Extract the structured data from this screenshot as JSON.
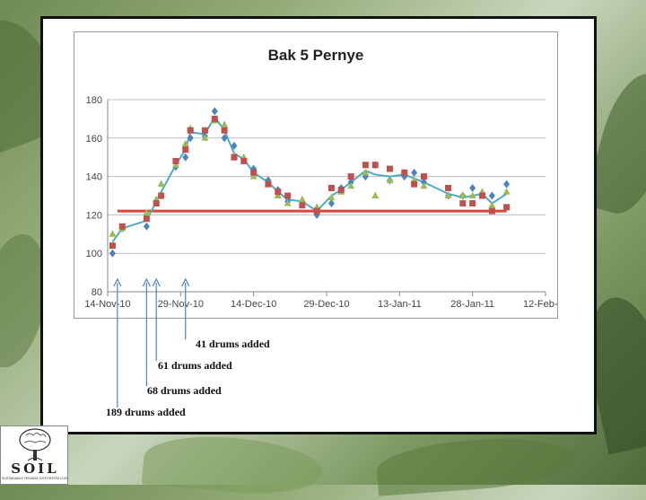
{
  "chart_data": {
    "type": "line",
    "title": "Bak 5 Pernye",
    "xlabel": "",
    "ylabel": "",
    "ylim": [
      80,
      180
    ],
    "yticks": [
      80,
      100,
      120,
      140,
      160,
      180
    ],
    "xlim": [
      "2010-11-14",
      "2011-02-12"
    ],
    "xticks": [
      "2010-11-14",
      "2010-11-29",
      "2010-12-14",
      "2010-12-29",
      "2011-01-13",
      "2011-01-28",
      "2011-02-12"
    ],
    "xtick_labels": [
      "14-Nov-10",
      "29-Nov-10",
      "14-Dec-10",
      "29-Dec-10",
      "13-Jan-11",
      "28-Jan-11",
      "12-Feb-11"
    ],
    "grid": true,
    "legend": "none",
    "threshold": 122,
    "series": [
      {
        "color": "#4f81bd",
        "marker": "diamond",
        "points": [
          [
            "2010-11-15",
            100
          ],
          [
            "2010-11-17",
            113
          ],
          [
            "2010-11-22",
            114
          ],
          [
            "2010-11-24",
            127
          ],
          [
            "2010-11-25",
            130
          ],
          [
            "2010-11-28",
            145
          ],
          [
            "2010-11-30",
            150
          ],
          [
            "2010-12-01",
            160
          ],
          [
            "2010-12-04",
            161
          ],
          [
            "2010-12-06",
            174
          ],
          [
            "2010-12-08",
            160
          ],
          [
            "2010-12-10",
            156
          ],
          [
            "2010-12-12",
            149
          ],
          [
            "2010-12-14",
            144
          ],
          [
            "2010-12-17",
            138
          ],
          [
            "2010-12-19",
            133
          ],
          [
            "2010-12-21",
            127
          ],
          [
            "2010-12-24",
            127
          ],
          [
            "2010-12-27",
            120
          ],
          [
            "2010-12-30",
            126
          ],
          [
            "2011-01-01",
            134
          ],
          [
            "2011-01-03",
            137
          ],
          [
            "2011-01-06",
            140
          ],
          [
            "2011-01-08",
            146
          ],
          [
            "2011-01-11",
            138
          ],
          [
            "2011-01-14",
            140
          ],
          [
            "2011-01-16",
            142
          ],
          [
            "2011-01-18",
            137
          ],
          [
            "2011-01-23",
            130
          ],
          [
            "2011-01-26",
            130
          ],
          [
            "2011-01-28",
            134
          ],
          [
            "2011-01-30",
            131
          ],
          [
            "2011-02-01",
            130
          ],
          [
            "2011-02-04",
            136
          ]
        ]
      },
      {
        "color": "#c0504d",
        "marker": "square",
        "points": [
          [
            "2010-11-15",
            104
          ],
          [
            "2010-11-17",
            114
          ],
          [
            "2010-11-22",
            118
          ],
          [
            "2010-11-24",
            126
          ],
          [
            "2010-11-25",
            130
          ],
          [
            "2010-11-28",
            148
          ],
          [
            "2010-11-30",
            154
          ],
          [
            "2010-12-01",
            164
          ],
          [
            "2010-12-04",
            164
          ],
          [
            "2010-12-06",
            170
          ],
          [
            "2010-12-08",
            164
          ],
          [
            "2010-12-10",
            150
          ],
          [
            "2010-12-12",
            148
          ],
          [
            "2010-12-14",
            142
          ],
          [
            "2010-12-17",
            136
          ],
          [
            "2010-12-19",
            132
          ],
          [
            "2010-12-21",
            130
          ],
          [
            "2010-12-24",
            125
          ],
          [
            "2010-12-27",
            122
          ],
          [
            "2010-12-30",
            134
          ],
          [
            "2011-01-01",
            133
          ],
          [
            "2011-01-03",
            140
          ],
          [
            "2011-01-06",
            146
          ],
          [
            "2011-01-08",
            146
          ],
          [
            "2011-01-11",
            144
          ],
          [
            "2011-01-14",
            142
          ],
          [
            "2011-01-16",
            136
          ],
          [
            "2011-01-18",
            140
          ],
          [
            "2011-01-23",
            134
          ],
          [
            "2011-01-26",
            126
          ],
          [
            "2011-01-28",
            126
          ],
          [
            "2011-01-30",
            130
          ],
          [
            "2011-02-01",
            122
          ],
          [
            "2011-02-04",
            124
          ]
        ]
      },
      {
        "color": "#9bbb59",
        "marker": "triangle",
        "points": [
          [
            "2010-11-15",
            110
          ],
          [
            "2010-11-17",
            113
          ],
          [
            "2010-11-22",
            121
          ],
          [
            "2010-11-24",
            128
          ],
          [
            "2010-11-25",
            136
          ],
          [
            "2010-11-28",
            146
          ],
          [
            "2010-11-30",
            157
          ],
          [
            "2010-12-01",
            165
          ],
          [
            "2010-12-04",
            160
          ],
          [
            "2010-12-06",
            169
          ],
          [
            "2010-12-08",
            167
          ],
          [
            "2010-12-10",
            151
          ],
          [
            "2010-12-12",
            150
          ],
          [
            "2010-12-14",
            140
          ],
          [
            "2010-12-17",
            136
          ],
          [
            "2010-12-19",
            130
          ],
          [
            "2010-12-21",
            126
          ],
          [
            "2010-12-24",
            128
          ],
          [
            "2010-12-27",
            124
          ],
          [
            "2010-12-30",
            129
          ],
          [
            "2011-01-01",
            132
          ],
          [
            "2011-01-03",
            135
          ],
          [
            "2011-01-06",
            142
          ],
          [
            "2011-01-08",
            130
          ],
          [
            "2011-01-11",
            138
          ],
          [
            "2011-01-14",
            142
          ],
          [
            "2011-01-16",
            138
          ],
          [
            "2011-01-18",
            135
          ],
          [
            "2011-01-23",
            130
          ],
          [
            "2011-01-26",
            130
          ],
          [
            "2011-01-28",
            130
          ],
          [
            "2011-01-30",
            132
          ],
          [
            "2011-02-01",
            125
          ],
          [
            "2011-02-04",
            132
          ]
        ]
      }
    ],
    "trend": {
      "color": "#4bacc6",
      "points": [
        [
          "2010-11-15",
          106
        ],
        [
          "2010-11-17",
          113
        ],
        [
          "2010-11-22",
          117
        ],
        [
          "2010-11-24",
          127
        ],
        [
          "2010-11-25",
          132
        ],
        [
          "2010-11-28",
          146
        ],
        [
          "2010-11-30",
          154
        ],
        [
          "2010-12-01",
          163
        ],
        [
          "2010-12-04",
          162
        ],
        [
          "2010-12-06",
          171
        ],
        [
          "2010-12-08",
          164
        ],
        [
          "2010-12-10",
          152
        ],
        [
          "2010-12-12",
          149
        ],
        [
          "2010-12-14",
          142
        ],
        [
          "2010-12-17",
          137
        ],
        [
          "2010-12-19",
          132
        ],
        [
          "2010-12-21",
          128
        ],
        [
          "2010-12-24",
          127
        ],
        [
          "2010-12-27",
          122
        ],
        [
          "2010-12-30",
          130
        ],
        [
          "2011-01-01",
          133
        ],
        [
          "2011-01-03",
          137
        ],
        [
          "2011-01-06",
          143
        ],
        [
          "2011-01-08",
          141
        ],
        [
          "2011-01-11",
          140
        ],
        [
          "2011-01-14",
          141
        ],
        [
          "2011-01-16",
          139
        ],
        [
          "2011-01-18",
          137
        ],
        [
          "2011-01-23",
          131
        ],
        [
          "2011-01-26",
          129
        ],
        [
          "2011-01-28",
          130
        ],
        [
          "2011-01-30",
          131
        ],
        [
          "2011-02-01",
          126
        ],
        [
          "2011-02-04",
          131
        ]
      ]
    },
    "annotations": [
      {
        "text": "41 drums added",
        "date": "2010-11-30"
      },
      {
        "text": "61 drums added",
        "date": "2010-11-24"
      },
      {
        "text": "68 drums added",
        "date": "2010-11-22"
      },
      {
        "text": "189 drums added",
        "date": "2010-11-16"
      }
    ]
  },
  "logo": {
    "name": "SOIL",
    "tagline": "SUSTAINABLE ORGANIC INTEGRATED LIVELIHOODS"
  }
}
